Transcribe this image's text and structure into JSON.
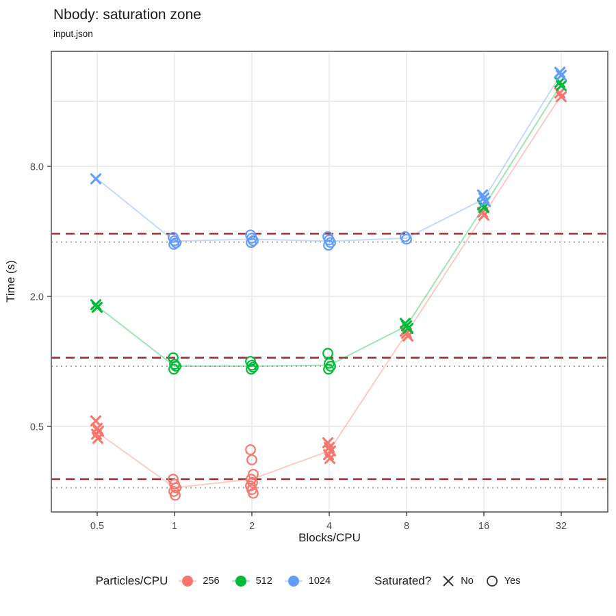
{
  "chart_data": {
    "type": "scatter",
    "title": "Nbody: saturation zone",
    "subtitle": "input.json",
    "xlabel": "Blocks/CPU",
    "ylabel": "Time (s)",
    "x_scale": "log2",
    "y_scale": "log",
    "x_ticks": [
      0.5,
      1,
      2,
      4,
      8,
      16,
      32
    ],
    "x_tick_labels": [
      "0.5",
      "1",
      "2",
      "4",
      "8",
      "16",
      "32"
    ],
    "y_ticks": [
      0.5,
      2.0,
      8.0
    ],
    "y_tick_labels": [
      "0.5",
      "2.0",
      "8.0"
    ],
    "y_gridlines": [
      0.5,
      2,
      8,
      16
    ],
    "xlim": [
      0.33,
      48
    ],
    "ylim": [
      0.2,
      27.5
    ],
    "grid": true,
    "hlines": {
      "dashed": {
        "color": "#9E262B",
        "style": "dashed",
        "values": [
          3.9,
          1.04,
          0.285
        ]
      },
      "dotted": {
        "color": "#ABABAB",
        "style": "dotted",
        "values": [
          3.57,
          0.95,
          0.26
        ]
      }
    },
    "series": [
      {
        "name": "256",
        "color": "#F8766D",
        "line_x": [
          0.5,
          1,
          2,
          4,
          8,
          16,
          32
        ],
        "line_y": [
          0.47,
          0.26,
          0.285,
          0.385,
          1.35,
          4.8,
          17.1
        ],
        "points": [
          {
            "x": 0.5,
            "saturated": "No",
            "times": [
              0.53,
              0.49,
              0.475,
              0.46,
              0.44
            ]
          },
          {
            "x": 1,
            "saturated": "Yes",
            "times": [
              0.285,
              0.27,
              0.26,
              0.25,
              0.24
            ]
          },
          {
            "x": 2,
            "saturated": "Yes",
            "times": [
              0.39,
              0.35,
              0.3,
              0.285,
              0.275,
              0.265,
              0.255,
              0.245
            ]
          },
          {
            "x": 4,
            "saturated": "No",
            "times": [
              0.42,
              0.4,
              0.385,
              0.37,
              0.355
            ]
          },
          {
            "x": 8,
            "saturated": "No",
            "times": [
              1.38,
              1.35,
              1.31
            ]
          },
          {
            "x": 16,
            "saturated": "No",
            "times": [
              4.9,
              4.75
            ]
          },
          {
            "x": 32,
            "saturated": "No",
            "times": [
              17.5,
              16.8
            ]
          }
        ]
      },
      {
        "name": "512",
        "color": "#00BA38",
        "line_x": [
          0.5,
          1,
          2,
          4,
          8,
          16,
          32
        ],
        "line_y": [
          1.8,
          0.95,
          0.95,
          0.96,
          1.46,
          5.2,
          19.2
        ],
        "points": [
          {
            "x": 0.5,
            "saturated": "No",
            "times": [
              1.83,
              1.78
            ]
          },
          {
            "x": 1,
            "saturated": "Yes",
            "times": [
              1.04,
              0.97,
              0.95,
              0.92
            ]
          },
          {
            "x": 2,
            "saturated": "Yes",
            "times": [
              1.0,
              0.96,
              0.94,
              0.92
            ]
          },
          {
            "x": 4,
            "saturated": "Yes",
            "times": [
              1.09,
              0.98,
              0.95,
              0.92
            ]
          },
          {
            "x": 8,
            "saturated": "No",
            "times": [
              1.5,
              1.46,
              1.42
            ]
          },
          {
            "x": 16,
            "saturated": "No",
            "times": [
              5.3,
              5.15
            ]
          },
          {
            "x": 32,
            "saturated": "No",
            "times": [
              19.6,
              18.9
            ]
          }
        ]
      },
      {
        "name": "1024",
        "color": "#619CFF",
        "line_x": [
          0.5,
          1,
          2,
          4,
          8,
          16,
          32
        ],
        "line_y": [
          7.0,
          3.6,
          3.68,
          3.6,
          3.72,
          5.65,
          21.5
        ],
        "points": [
          {
            "x": 0.5,
            "saturated": "No",
            "times": [
              7.0
            ]
          },
          {
            "x": 1,
            "saturated": "Yes",
            "times": [
              3.75,
              3.62,
              3.54,
              3.48
            ]
          },
          {
            "x": 2,
            "saturated": "Yes",
            "times": [
              3.85,
              3.72,
              3.62,
              3.55
            ]
          },
          {
            "x": 4,
            "saturated": "Yes",
            "times": [
              3.78,
              3.65,
              3.55,
              3.45
            ]
          },
          {
            "x": 8,
            "saturated": "Yes",
            "times": [
              3.78,
              3.68
            ]
          },
          {
            "x": 16,
            "saturated": "No",
            "times": [
              5.9,
              5.7,
              5.5
            ]
          },
          {
            "x": 32,
            "saturated": "No",
            "times": [
              21.8,
              21.1
            ]
          }
        ]
      }
    ],
    "legend": {
      "position": "bottom",
      "color": {
        "title": "Particles/CPU",
        "items": [
          {
            "label": "256",
            "color": "#F8766D"
          },
          {
            "label": "512",
            "color": "#00BA38"
          },
          {
            "label": "1024",
            "color": "#619CFF"
          }
        ]
      },
      "shape": {
        "title": "Saturated?",
        "items": [
          {
            "label": "No",
            "shape": "x"
          },
          {
            "label": "Yes",
            "shape": "circle"
          }
        ]
      }
    }
  }
}
